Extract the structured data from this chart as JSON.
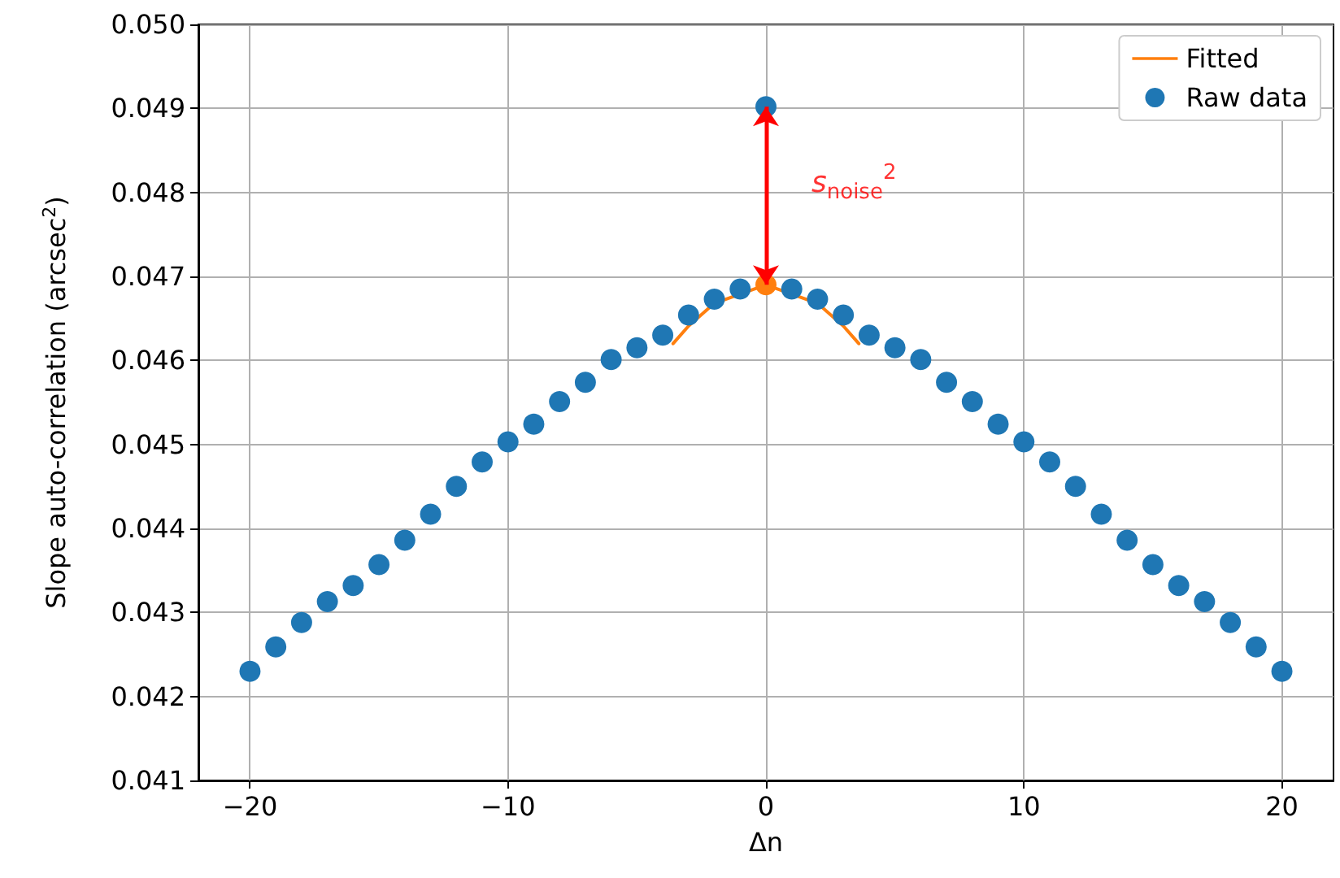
{
  "chart_data": {
    "type": "scatter",
    "xlabel": "Δn",
    "ylabel": "Slope auto-correlation (arcsec$^{2}$)",
    "series": [
      {
        "name": "Fitted",
        "type": "line",
        "color": "#ff7f0e",
        "marker": "none",
        "line_style": "solid",
        "x": [
          -3.6,
          -3,
          -2,
          -1,
          0,
          1,
          2,
          3,
          3.6
        ],
        "values": [
          0.0462,
          0.04641,
          0.04668,
          null,
          0.0469,
          null,
          0.04668,
          0.04641,
          0.0462
        ]
      },
      {
        "type": "scatter",
        "color": "#ff7f0e",
        "marker": "circle",
        "x": [
          0
        ],
        "values": [
          0.0469
        ]
      },
      {
        "name": "Raw data",
        "color": "#1f77b4",
        "marker": "circle",
        "x": [
          -20,
          -19,
          -18,
          -17,
          -16,
          -15,
          -14,
          -13,
          -12,
          -11,
          -10,
          -9,
          -8,
          -7,
          -6,
          -5,
          -4,
          -3,
          -2,
          -1,
          0,
          1,
          2,
          3,
          4,
          5,
          6,
          7,
          8,
          9,
          10,
          11,
          12,
          13,
          14,
          15,
          16,
          17,
          18,
          19,
          20
        ],
        "values": [
          0.0423,
          0.04259,
          0.04288,
          0.04313,
          0.04332,
          0.04357,
          0.04386,
          0.04417,
          0.0445,
          0.04479,
          0.04503,
          0.04524,
          0.04551,
          0.04574,
          0.04601,
          0.04615,
          0.0463,
          0.04654,
          0.04673,
          0.04685,
          0.04902,
          0.04685,
          0.04673,
          0.04654,
          0.0463,
          0.04615,
          0.04601,
          0.04574,
          0.04551,
          0.04524,
          0.04503,
          0.04479,
          0.0445,
          0.04417,
          0.04386,
          0.04357,
          0.04332,
          0.04313,
          0.04288,
          0.04259,
          0.0423
        ]
      }
    ],
    "annotations": [
      "s$_{noise}$$^{2}$"
    ],
    "xlim": [
      -22,
      22
    ],
    "xticks": [
      {
        "value": -20,
        "label": "−20"
      },
      {
        "value": -10,
        "label": "−10"
      },
      0,
      10,
      20
    ],
    "ylim": [
      0.041,
      0.05
    ],
    "yticks": [
      0.041,
      0.042,
      0.043,
      0.044,
      0.045,
      0.046,
      0.047,
      0.048,
      0.049,
      {
        "value": 0.05,
        "label": "0.050"
      }
    ],
    "grid": true,
    "legend": "top right"
  }
}
